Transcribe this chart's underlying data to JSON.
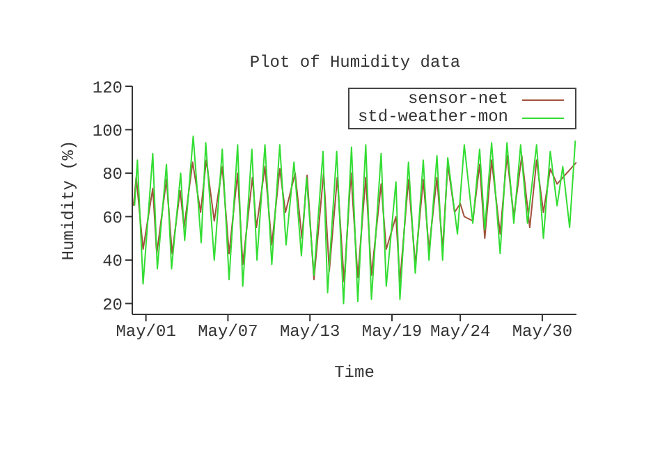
{
  "chart_data": {
    "type": "line",
    "title": "Plot of Humidity data",
    "xlabel": "Time",
    "ylabel": "Humidity (%)",
    "xlim": [
      "--04-30",
      "--06-01T12:00"
    ],
    "xticks": [
      {
        "value": "--05-01",
        "label": "May/01"
      },
      {
        "value": "--05-07",
        "label": "May/07"
      },
      {
        "value": "--05-13",
        "label": "May/13"
      },
      {
        "value": "--05-19",
        "label": "May/19"
      },
      {
        "value": "--05-24",
        "label": "May/24"
      },
      {
        "value": "--05-30",
        "label": "May/30"
      }
    ],
    "ylim": [
      15,
      120
    ],
    "yticks": [
      20,
      40,
      60,
      80,
      100,
      120
    ],
    "legend": "top right",
    "marker": "none",
    "line_style": "solid",
    "series": [
      {
        "name": "sensor-net",
        "color": "#a0523c",
        "x": [
          "--04-30T02:00",
          "--04-30T07:00",
          "--04-30T19:00",
          "--05-01T12:00",
          "--05-01T19:00",
          "--05-02T12:00",
          "--05-02T22:00",
          "--05-03T12:00",
          "--05-03T19:00",
          "--05-04T10:00",
          "--05-05T00:00",
          "--05-05T10:00",
          "--05-06T00:00",
          "--05-06T14:00",
          "--05-07T02:00",
          "--05-07T17:00",
          "--05-08T02:00",
          "--05-08T19:00",
          "--05-09T02:00",
          "--05-09T17:00",
          "--05-10T05:00",
          "--05-10T19:00",
          "--05-11T05:00",
          "--05-11T22:00",
          "--05-12T10:00",
          "--05-12T19:00",
          "--05-13T07:00",
          "--05-14T00:00",
          "--05-14T10:00",
          "--05-15T00:00",
          "--05-15T12:00",
          "--05-16T00:00",
          "--05-16T12:00",
          "--05-17T02:00",
          "--05-17T12:00",
          "--05-18T05:00",
          "--05-18T14:00",
          "--05-19T07:00",
          "--05-19T14:00",
          "--05-20T05:00",
          "--05-20T17:00",
          "--05-21T07:00",
          "--05-21T17:00",
          "--05-22T07:00",
          "--05-22T17:00",
          "--05-23T02:00",
          "--05-23T14:00",
          "--05-24T00:00",
          "--05-24T07:00",
          "--05-24T22:00",
          "--05-25T10:00",
          "--05-25T19:00",
          "--05-26T07:00",
          "--05-26T22:00",
          "--05-27T10:00",
          "--05-27T22:00",
          "--05-28T12:00",
          "--05-29T02:00",
          "--05-29T14:00",
          "--05-30T02:00",
          "--05-30T14:00",
          "--05-31T02:00",
          "--06-01T12:00"
        ],
        "values": [
          65,
          78,
          45,
          73,
          43,
          77,
          43,
          72,
          55,
          85,
          62,
          86,
          58,
          83,
          43,
          80,
          38,
          78,
          55,
          83,
          47,
          82,
          62,
          80,
          50,
          79,
          31,
          80,
          35,
          78,
          30,
          80,
          32,
          78,
          33,
          75,
          45,
          60,
          30,
          77,
          38,
          77,
          45,
          78,
          45,
          84,
          62,
          66,
          60,
          58,
          84,
          50,
          86,
          52,
          88,
          60,
          88,
          55,
          86,
          62,
          82,
          75,
          85
        ]
      },
      {
        "name": "std-weather-mon",
        "color": "#33dd33",
        "x": [
          "--04-30T04:00",
          "--04-30T09:00",
          "--04-30T19:00",
          "--05-01T12:00",
          "--05-01T20:00",
          "--05-02T12:00",
          "--05-02T21:00",
          "--05-03T13:00",
          "--05-03T20:00",
          "--05-04T11:00",
          "--05-05T01:00",
          "--05-05T09:00",
          "--05-06T00:00",
          "--05-06T14:00",
          "--05-07T02:00",
          "--05-07T17:00",
          "--05-08T02:00",
          "--05-08T18:00",
          "--05-09T03:00",
          "--05-09T17:00",
          "--05-10T05:00",
          "--05-10T19:00",
          "--05-11T06:00",
          "--05-11T20:00",
          "--05-12T09:00",
          "--05-12T18:00",
          "--05-13T07:00",
          "--05-13T23:00",
          "--05-14T07:00",
          "--05-14T23:00",
          "--05-15T11:00",
          "--05-16T01:00",
          "--05-16T12:00",
          "--05-17T02:00",
          "--05-17T12:00",
          "--05-18T05:00",
          "--05-18T14:00",
          "--05-19T07:00",
          "--05-19T14:00",
          "--05-20T05:00",
          "--05-20T17:00",
          "--05-21T07:00",
          "--05-21T17:00",
          "--05-22T07:00",
          "--05-22T17:00",
          "--05-23T02:00",
          "--05-23T19:00",
          "--05-24T07:00",
          "--05-24T22:00",
          "--05-25T10:00",
          "--05-25T19:00",
          "--05-26T07:00",
          "--05-26T22:00",
          "--05-27T10:00",
          "--05-27T22:00",
          "--05-28T10:00",
          "--05-28T22:00",
          "--05-29T14:00",
          "--05-30T02:00",
          "--05-30T14:00",
          "--05-31T02:00",
          "--05-31T12:00",
          "--06-01T00:00",
          "--06-01T10:00"
        ],
        "values": [
          65,
          86,
          29,
          89,
          36,
          84,
          36,
          80,
          49,
          97,
          48,
          94,
          40,
          91,
          31,
          93,
          28,
          91,
          40,
          93,
          38,
          93,
          47,
          85,
          42,
          78,
          33,
          90,
          25,
          90,
          20,
          92,
          21,
          93,
          22,
          89,
          28,
          76,
          22,
          85,
          34,
          86,
          40,
          88,
          40,
          87,
          52,
          93,
          57,
          91,
          54,
          94,
          43,
          94,
          57,
          93,
          57,
          93,
          50,
          90,
          65,
          83,
          55,
          95
        ]
      }
    ]
  }
}
